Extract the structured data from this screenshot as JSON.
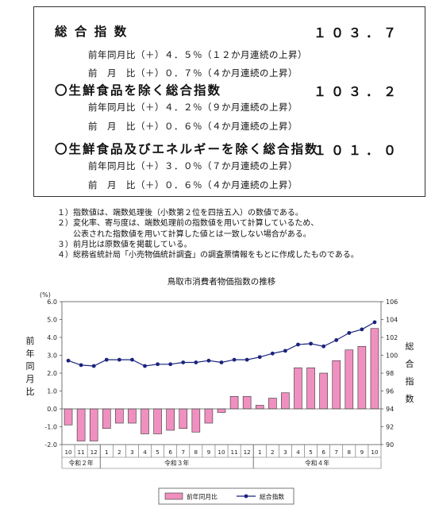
{
  "summary": {
    "items": [
      {
        "title": "総 合 指 数",
        "value": "１０３．７",
        "yoy": "前年同月比（＋）４．５％（１２か月連続の上昇）",
        "mom": "前　月　比（＋）０．７％（４か月連続の上昇）"
      },
      {
        "title": "〇生鮮食品を除く総合指数",
        "value": "１０３．２",
        "yoy": "前年同月比（＋）４．２％（９か月連続の上昇）",
        "mom": "前　月　比（＋）０．６％（４か月連続の上昇）"
      },
      {
        "title": "〇生鮮食品及びエネルギーを除く総合指数",
        "value": "１０１．０",
        "yoy": "前年同月比（＋）３．０％（７か月連続の上昇）",
        "mom": "前　月　比（＋）０．６％（４か月連続の上昇）"
      }
    ]
  },
  "notes": [
    "１）指数値は、端数処理後（小数第２位を四捨五入）の数値である。",
    "２）変化率、寄与度は、端数処理前の指数値を用いて計算しているため、",
    "　　公表された指数値を用いて計算した値とは一致しない場合がある。",
    "３）前月比は原数値を掲載している。",
    "４）総務省統計局「小売物価統計調査」の調査票情報をもとに作成したものである。"
  ],
  "chart_data": {
    "type": "bar+line",
    "title": "鳥取市消費者物価指数の推移",
    "left_axis": {
      "unit": "(%)",
      "label": "前年同月比",
      "ylim": [
        -2.0,
        6.0
      ],
      "ticks": [
        "6.0",
        "5.0",
        "4.0",
        "3.0",
        "2.0",
        "1.0",
        "0.0",
        "-1.0",
        "-2.0"
      ]
    },
    "right_axis": {
      "label": "総合指数",
      "ylim": [
        90,
        106
      ],
      "ticks": [
        "106",
        "104",
        "102",
        "100",
        "98",
        "96",
        "94",
        "92",
        "90"
      ]
    },
    "categories": [
      "10",
      "11",
      "12",
      "1",
      "2",
      "3",
      "4",
      "5",
      "6",
      "7",
      "8",
      "9",
      "10",
      "11",
      "12",
      "1",
      "2",
      "3",
      "4",
      "5",
      "6",
      "7",
      "8",
      "9",
      "10"
    ],
    "year_groups": [
      {
        "label": "令和２年",
        "count": 3
      },
      {
        "label": "令和３年",
        "count": 12
      },
      {
        "label": "令和４年",
        "count": 10
      }
    ],
    "series": [
      {
        "name": "前年同月比",
        "kind": "bar",
        "color": "#f090c0",
        "axis": "left",
        "values": [
          -0.9,
          -1.8,
          -1.8,
          -1.1,
          -0.8,
          -0.8,
          -1.4,
          -1.4,
          -1.2,
          -1.1,
          -1.3,
          -0.8,
          -0.2,
          0.7,
          0.7,
          0.2,
          0.6,
          0.9,
          2.3,
          2.3,
          2.0,
          2.7,
          3.3,
          3.5,
          4.5
        ]
      },
      {
        "name": "総合指数",
        "kind": "line",
        "color": "#1a237e",
        "axis": "right",
        "values": [
          99.4,
          98.9,
          98.8,
          99.5,
          99.5,
          99.5,
          98.8,
          99.0,
          99.0,
          99.2,
          99.2,
          99.4,
          99.2,
          99.5,
          99.5,
          99.8,
          100.2,
          100.5,
          101.2,
          101.3,
          101.0,
          101.7,
          102.5,
          102.9,
          103.7
        ]
      }
    ],
    "legend_position": "bottom"
  }
}
